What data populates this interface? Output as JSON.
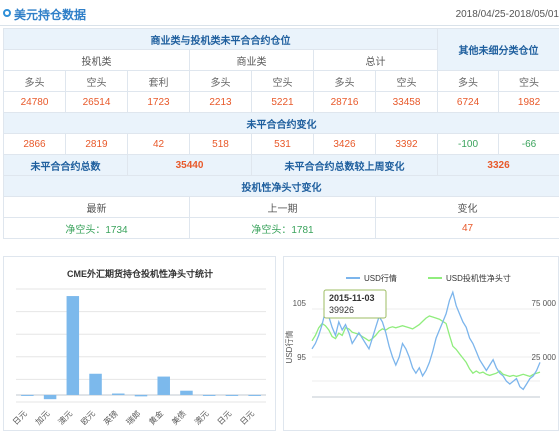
{
  "header": {
    "title": "美元持仓数据",
    "date_range": "2018/04/25-2018/05/01"
  },
  "table": {
    "group_commercial": "商业类与投机类未平合合约仓位",
    "group_other": "其他未细分类仓位",
    "col_spec": "投机类",
    "col_comm": "商业类",
    "col_total": "总计",
    "long": "多头",
    "short": "空头",
    "arb": "套利",
    "positions": {
      "spec_long": "24780",
      "spec_short": "26514",
      "spec_arb": "1723",
      "comm_long": "2213",
      "comm_short": "5221",
      "total_long": "28716",
      "total_short": "33458",
      "other_long": "6724",
      "other_short": "1982"
    },
    "change_title": "未平合合约变化",
    "changes": {
      "spec_long": "2866",
      "spec_short": "2819",
      "spec_arb": "42",
      "comm_long": "518",
      "comm_short": "531",
      "total_long": "3426",
      "total_short": "3392",
      "other_long": "-100",
      "other_short": "-66"
    },
    "oi_total_label": "未平合合约总数",
    "oi_total": "35440",
    "oi_change_label": "未平合合约总数较上周变化",
    "oi_change": "3326",
    "net_title": "投机性净头寸变化",
    "latest_label": "最新",
    "prev_label": "上一期",
    "change_label": "变化",
    "latest": "净空头：1734",
    "prev": "净空头：1781",
    "net_change": "47"
  },
  "bar_panel": {
    "title": "CME外汇期货持仓投机性净头寸统计"
  },
  "chart_data": [
    {
      "type": "bar",
      "title": "CME外汇期货持仓投机性净头寸统计",
      "categories": [
        "日元",
        "加元",
        "澳元",
        "欧元",
        "英镑",
        "瑞郎",
        "黄金",
        "美债",
        "澳元",
        "日元",
        "日元"
      ],
      "values": [
        0,
        -3,
        70,
        15,
        1,
        -1,
        13,
        3,
        0,
        0,
        0
      ],
      "ylim": [
        -5,
        75
      ],
      "grid": true,
      "colors": {
        "bar": "#7cb9ec"
      }
    },
    {
      "type": "line",
      "legend": [
        "USD行情",
        "USD投机性净头寸"
      ],
      "legend_position": "top",
      "y_left_ticks": [
        "105",
        "95"
      ],
      "y_right_ticks": [
        "75 000",
        "25 000"
      ],
      "ylabel_left": "USD行情",
      "tooltip": {
        "date": "2015-11-03",
        "value": "39926"
      },
      "series": [
        {
          "name": "USD行情",
          "color": "#7cb5ec",
          "values": [
            96.5,
            97.5,
            99,
            101,
            103.5,
            102.5,
            100.5,
            99,
            101.5,
            100,
            101,
            99.5,
            97.5,
            98.5,
            99.5,
            98.5,
            97.5,
            96.5,
            98.5,
            100.5,
            102.5,
            101.5,
            99.5,
            97,
            95,
            93.5,
            95,
            97.5,
            96.5,
            95,
            93,
            92,
            93,
            91.5,
            92.5,
            94,
            96,
            98.5,
            100,
            101.5,
            103,
            105.5,
            107,
            104.5,
            103,
            101.5,
            100.5,
            98.5,
            97.5,
            96,
            94.5,
            93.5,
            92.5,
            93.5,
            94.5,
            93,
            92,
            91.5,
            90.5,
            90,
            90.5,
            91,
            89.5,
            89,
            90,
            91,
            91.5,
            92.5,
            94
          ]
        },
        {
          "name": "USD投机性净头寸",
          "color": "#90ed7d",
          "values": [
            40000,
            45000,
            52000,
            56000,
            54000,
            50000,
            44000,
            42000,
            47000,
            45000,
            52000,
            51000,
            48000,
            47000,
            46000,
            44000,
            42000,
            40000,
            42000,
            45000,
            49000,
            51000,
            50000,
            52000,
            53000,
            52000,
            53000,
            54000,
            53000,
            52000,
            51000,
            53000,
            55000,
            58000,
            61000,
            63000,
            62000,
            61000,
            60000,
            58000,
            56000,
            45000,
            35000,
            32000,
            28000,
            24000,
            20000,
            14000,
            10000,
            12000,
            10000,
            11000,
            9000,
            8000,
            9000,
            10000,
            12000,
            9000,
            8000,
            7000,
            8000,
            7000,
            8000,
            9000,
            8000,
            7000,
            9000,
            10000,
            11000
          ]
        }
      ],
      "colors": {
        "tooltip_border": "#9cbc63"
      }
    }
  ]
}
